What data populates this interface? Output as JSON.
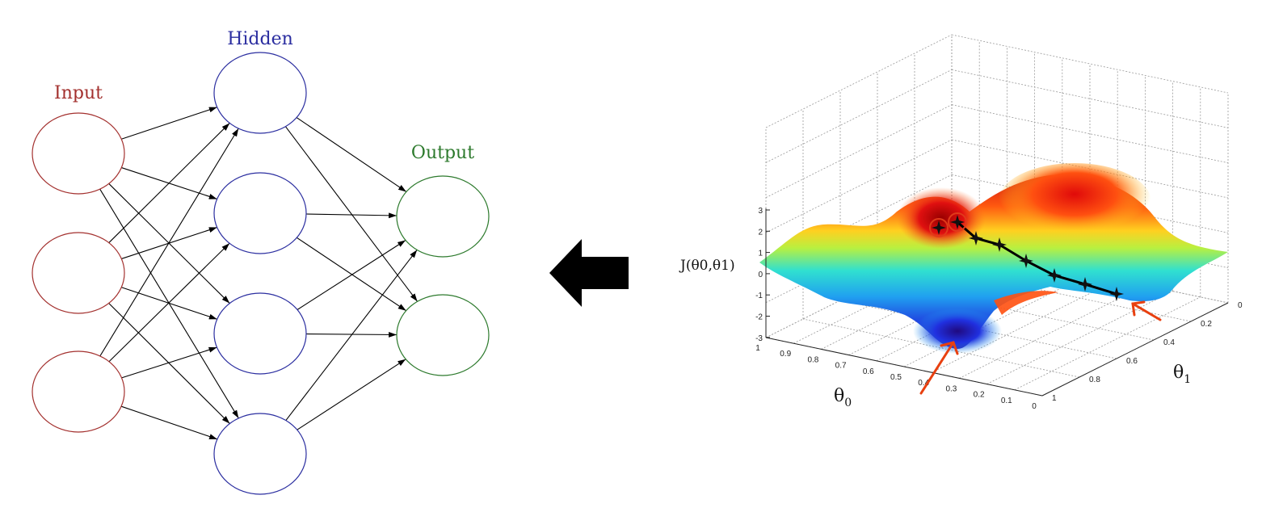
{
  "network": {
    "layers": [
      {
        "label": "Input",
        "color": "#a3302e",
        "nodes": 3
      },
      {
        "label": "Hidden",
        "color": "#2b2ea0",
        "nodes": 4
      },
      {
        "label": "Output",
        "color": "#2d7a2d",
        "nodes": 2
      }
    ]
  },
  "arrow": {
    "icon": "arrow-left-icon",
    "color": "#000000"
  },
  "surface_plot": {
    "zlabel": "J(θ0,θ1)",
    "xlabel": "θ0",
    "ylabel": "θ1",
    "z_ticks": [
      "3",
      "2",
      "1",
      "0",
      "-1",
      "-2",
      "-3"
    ],
    "x_ticks": [
      "1",
      "0.9",
      "0.8",
      "0.7",
      "0.6",
      "0.5",
      "0.4",
      "0.3",
      "0.2",
      "0.1",
      "0"
    ],
    "y_ticks": [
      "0",
      "0.2",
      "0.4",
      "0.6",
      "0.8",
      "1"
    ],
    "colormap": "jet",
    "path_color": "#000000",
    "marker_color": "#e03a1a"
  }
}
